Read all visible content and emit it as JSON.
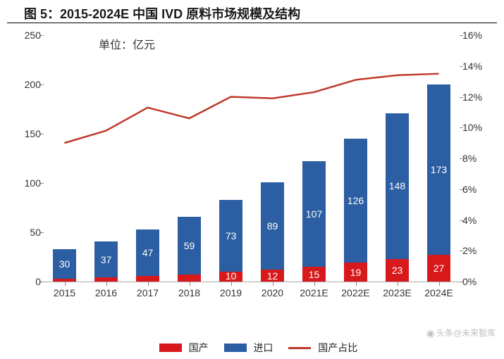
{
  "title": "图 5：2015-2024E 中国 IVD 原料市场规模及结构",
  "unit_label": "单位：亿元",
  "watermark": "头条@未来智库",
  "legend": {
    "domestic": "国产",
    "import": "进口",
    "ratio": "国产占比"
  },
  "chart": {
    "type": "stacked-bar-with-line",
    "y_left": {
      "min": 0,
      "max": 250,
      "step": 50,
      "labels": [
        "0",
        "50",
        "100",
        "150",
        "200",
        "250"
      ]
    },
    "y_right": {
      "min": 0,
      "max": 0.16,
      "step": 0.02,
      "labels": [
        "0%",
        "2%",
        "4%",
        "6%",
        "8%",
        "10%",
        "12%",
        "14%",
        "16%"
      ]
    },
    "categories": [
      "2015",
      "2016",
      "2017",
      "2018",
      "2019",
      "2020",
      "2021E",
      "2022E",
      "2023E",
      "2024E"
    ],
    "series": {
      "domestic": {
        "color": "#d7191c",
        "values": [
          3,
          4,
          6,
          7,
          10,
          12,
          15,
          19,
          23,
          27
        ],
        "label_fontsize": 14
      },
      "import": {
        "color": "#2b5ea3",
        "values": [
          30,
          37,
          47,
          59,
          73,
          89,
          107,
          126,
          148,
          173
        ],
        "label_fontsize": 14
      },
      "ratio": {
        "color": "#c0392b",
        "values": [
          0.09,
          0.098,
          0.113,
          0.106,
          0.12,
          0.119,
          0.123,
          0.131,
          0.134,
          0.135
        ],
        "line_width": 2.5,
        "marker": "none"
      }
    },
    "bar_width_ratio": 0.56,
    "background_color": "#ffffff",
    "axis_color": "#888888",
    "label_color": "#333333",
    "title_fontsize": 18,
    "axis_fontsize": 14
  }
}
